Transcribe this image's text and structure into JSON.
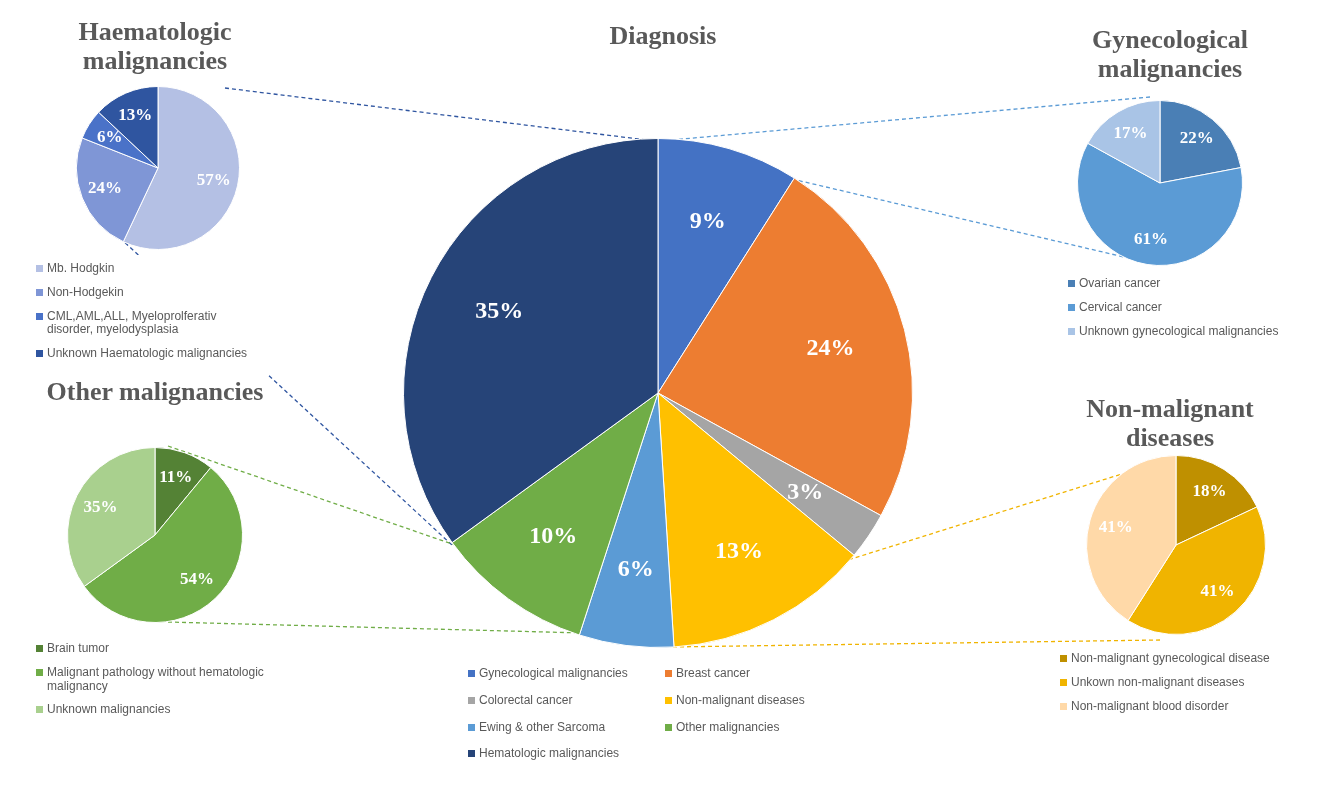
{
  "chart_data": [
    {
      "type": "pie",
      "title": "Diagnosis",
      "categories": [
        "Gynecological malignancies",
        "Breast cancer",
        "Colorectal cancer",
        "Non-malignant diseases",
        "Ewing & other Sarcoma",
        "Other malignancies",
        "Hematologic malignancies"
      ],
      "values": [
        9,
        24,
        3,
        13,
        6,
        10,
        35
      ],
      "colors": [
        "#4472c4",
        "#ed7d31",
        "#a5a5a5",
        "#ffc000",
        "#5b9bd5",
        "#70ad47",
        "#264478"
      ],
      "value_labels": [
        "9%",
        "24%",
        "3%",
        "13%",
        "6%",
        "10%",
        "35%"
      ],
      "legend": "bottom"
    },
    {
      "type": "pie",
      "title": "Haematologic malignancies",
      "categories": [
        "Mb. Hodgkin",
        "Non-Hodgekin",
        "CML,AML,ALL, Myeloprolferativ disorder, myelodysplasia",
        "Unknown Haematologic malignancies"
      ],
      "values": [
        57,
        24,
        6,
        13
      ],
      "colors": [
        "#b4c0e4",
        "#7f96d6",
        "#4a72c8",
        "#2f55a0"
      ],
      "value_labels": [
        "57%",
        "24%",
        "6%",
        "13%"
      ],
      "legend": "bottom"
    },
    {
      "type": "pie",
      "title": "Gynecological malignancies",
      "categories": [
        "Ovarian cancer",
        "Cervical cancer",
        "Unknown gynecological malignancies"
      ],
      "values": [
        22,
        61,
        17
      ],
      "colors": [
        "#4a7fb5",
        "#5b9bd5",
        "#a9c4e6"
      ],
      "value_labels": [
        "22%",
        "61%",
        "17%"
      ],
      "legend": "bottom"
    },
    {
      "type": "pie",
      "title": "Other malignancies",
      "categories": [
        "Brain tumor",
        "Malignant pathology without hematologic malignancy",
        "Unknown malignancies"
      ],
      "values": [
        11,
        54,
        35
      ],
      "colors": [
        "#548235",
        "#70ad47",
        "#a9d08e"
      ],
      "value_labels": [
        "11%",
        "54%",
        "35%"
      ],
      "legend": "bottom"
    },
    {
      "type": "pie",
      "title": "Non-malignant diseases",
      "categories": [
        "Non-malignant gynecological disease",
        "Unkown non-malignant diseases",
        "Non-malignant blood disorder"
      ],
      "values": [
        18,
        41,
        41
      ],
      "colors": [
        "#bf9000",
        "#f0b400",
        "#ffd9a8"
      ],
      "value_labels": [
        "18%",
        "41%",
        "41%"
      ],
      "legend": "bottom"
    }
  ]
}
